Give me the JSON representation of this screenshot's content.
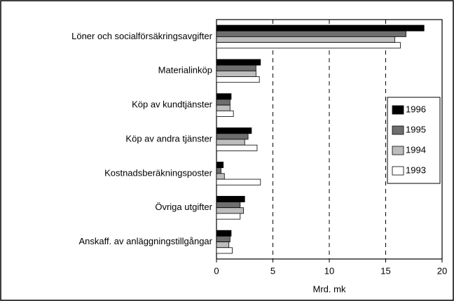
{
  "chart_data": {
    "type": "hbar",
    "categories": [
      "Löner och socialförsäkringsavgifter",
      "Materialinköp",
      "Köp av kundtjänster",
      "Köp av andra tjänster",
      "Kostnadsberäkningsposter",
      "Övriga utgifter",
      "Anskaff. av anläggningstillgångar"
    ],
    "series": [
      {
        "name": "1996",
        "color": "#000000",
        "values": [
          18.4,
          3.9,
          1.3,
          3.1,
          0.6,
          2.5,
          1.3
        ]
      },
      {
        "name": "1995",
        "color": "#6e6e6e",
        "values": [
          16.8,
          3.5,
          1.2,
          2.8,
          0.4,
          2.1,
          1.2
        ]
      },
      {
        "name": "1994",
        "color": "#bdbdbd",
        "values": [
          15.8,
          3.5,
          1.2,
          2.5,
          0.7,
          2.4,
          1.1
        ]
      },
      {
        "name": "1993",
        "color": "#ffffff",
        "values": [
          16.3,
          3.8,
          1.5,
          3.6,
          3.9,
          2.1,
          1.4
        ]
      }
    ],
    "xlabel": "Mrd. mk",
    "xlim": [
      0,
      20
    ],
    "xticks": [
      0,
      5,
      10,
      15,
      20
    ],
    "grid": true,
    "legend": "right"
  }
}
